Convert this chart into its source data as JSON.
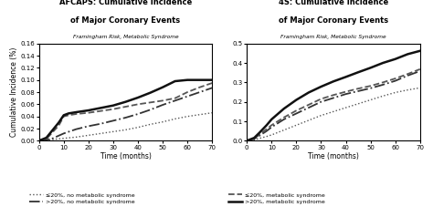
{
  "title_left1": "AFCAPS: Cumulative Incidence",
  "title_left2": "of Major Coronary Events",
  "subtitle_left": "Framingham Risk, Metabolic Syndrome",
  "title_right1": "4S: Cumulative Incidence",
  "title_right2": "of Major Coronary Events",
  "subtitle_right": "Framingham Risk, Metabolic Syndrome",
  "xlabel": "Time (months)",
  "ylabel": "Cumulative Incidence (%)",
  "left_ylim": [
    0,
    0.16
  ],
  "left_yticks": [
    0.0,
    0.02,
    0.04,
    0.06,
    0.08,
    0.1,
    0.12,
    0.14,
    0.16
  ],
  "right_ylim": [
    0,
    0.5
  ],
  "right_yticks": [
    0.0,
    0.1,
    0.2,
    0.3,
    0.4,
    0.5
  ],
  "xlim": [
    0,
    70
  ],
  "xticks": [
    0,
    10,
    20,
    30,
    40,
    50,
    60,
    70
  ],
  "left_curves": {
    "le20_no_met": {
      "x": [
        0,
        5,
        10,
        15,
        20,
        25,
        30,
        35,
        40,
        45,
        50,
        55,
        60,
        65,
        70
      ],
      "y": [
        0.0,
        0.002,
        0.004,
        0.006,
        0.009,
        0.012,
        0.015,
        0.018,
        0.022,
        0.027,
        0.031,
        0.036,
        0.04,
        0.043,
        0.046
      ],
      "style": "dotted",
      "color": "#555555",
      "linewidth": 1.0
    },
    "gt20_no_met": {
      "x": [
        0,
        5,
        10,
        15,
        20,
        25,
        30,
        35,
        40,
        45,
        50,
        55,
        60,
        65,
        70
      ],
      "y": [
        0.0,
        0.003,
        0.012,
        0.019,
        0.024,
        0.028,
        0.033,
        0.038,
        0.044,
        0.051,
        0.059,
        0.066,
        0.073,
        0.08,
        0.087
      ],
      "style": "dashdot",
      "color": "#333333",
      "linewidth": 1.3
    },
    "le20_met": {
      "x": [
        0,
        3,
        8,
        10,
        12,
        15,
        20,
        25,
        30,
        35,
        40,
        45,
        50,
        55,
        60,
        65,
        70
      ],
      "y": [
        0.0,
        0.003,
        0.025,
        0.04,
        0.042,
        0.044,
        0.046,
        0.049,
        0.052,
        0.056,
        0.06,
        0.063,
        0.066,
        0.07,
        0.08,
        0.088,
        0.095
      ],
      "style": "dashed",
      "color": "#555555",
      "linewidth": 1.3
    },
    "gt20_met": {
      "x": [
        0,
        3,
        8,
        10,
        12,
        15,
        20,
        25,
        30,
        35,
        40,
        45,
        50,
        55,
        60,
        65,
        70
      ],
      "y": [
        0.0,
        0.005,
        0.03,
        0.042,
        0.045,
        0.047,
        0.05,
        0.054,
        0.058,
        0.064,
        0.071,
        0.079,
        0.088,
        0.098,
        0.1,
        0.1,
        0.1
      ],
      "style": "solid",
      "color": "#111111",
      "linewidth": 1.8
    }
  },
  "right_curves": {
    "le20_no_met": {
      "x": [
        0,
        3,
        5,
        8,
        10,
        15,
        20,
        25,
        30,
        35,
        40,
        45,
        50,
        55,
        60,
        65,
        70
      ],
      "y": [
        0.0,
        0.005,
        0.012,
        0.022,
        0.03,
        0.055,
        0.08,
        0.105,
        0.13,
        0.15,
        0.17,
        0.19,
        0.21,
        0.23,
        0.248,
        0.261,
        0.272
      ],
      "style": "dotted",
      "color": "#555555",
      "linewidth": 1.0
    },
    "gt20_no_met": {
      "x": [
        0,
        3,
        5,
        8,
        10,
        15,
        20,
        25,
        30,
        35,
        40,
        45,
        50,
        55,
        60,
        65,
        70
      ],
      "y": [
        0.0,
        0.01,
        0.025,
        0.05,
        0.07,
        0.11,
        0.14,
        0.17,
        0.2,
        0.22,
        0.24,
        0.255,
        0.27,
        0.288,
        0.308,
        0.335,
        0.358
      ],
      "style": "dashdot",
      "color": "#333333",
      "linewidth": 1.3
    },
    "le20_met": {
      "x": [
        0,
        3,
        5,
        8,
        10,
        15,
        20,
        25,
        30,
        35,
        40,
        45,
        50,
        55,
        60,
        65,
        70
      ],
      "y": [
        0.0,
        0.012,
        0.03,
        0.06,
        0.08,
        0.12,
        0.155,
        0.185,
        0.215,
        0.235,
        0.252,
        0.268,
        0.282,
        0.3,
        0.32,
        0.343,
        0.368
      ],
      "style": "dashed",
      "color": "#555555",
      "linewidth": 1.3
    },
    "gt20_met": {
      "x": [
        0,
        3,
        5,
        8,
        10,
        15,
        20,
        25,
        30,
        35,
        40,
        45,
        50,
        55,
        60,
        65,
        70
      ],
      "y": [
        0.0,
        0.015,
        0.04,
        0.08,
        0.11,
        0.165,
        0.21,
        0.248,
        0.278,
        0.305,
        0.328,
        0.352,
        0.375,
        0.4,
        0.42,
        0.445,
        0.462
      ],
      "style": "solid",
      "color": "#111111",
      "linewidth": 1.8
    }
  },
  "legend": [
    {
      "label": "≤20%, no metabolic syndrome",
      "style": "dotted",
      "color": "#555555",
      "linewidth": 1.0
    },
    {
      "label": ">20%, no metabolic syndrome",
      "style": "dashdot",
      "color": "#333333",
      "linewidth": 1.3
    },
    {
      "label": "≤20%, metabolic syndrome",
      "style": "dashed",
      "color": "#555555",
      "linewidth": 1.3
    },
    {
      "label": ">20%, metabolic syndrome",
      "style": "solid",
      "color": "#111111",
      "linewidth": 1.8
    }
  ],
  "background_color": "#ffffff"
}
